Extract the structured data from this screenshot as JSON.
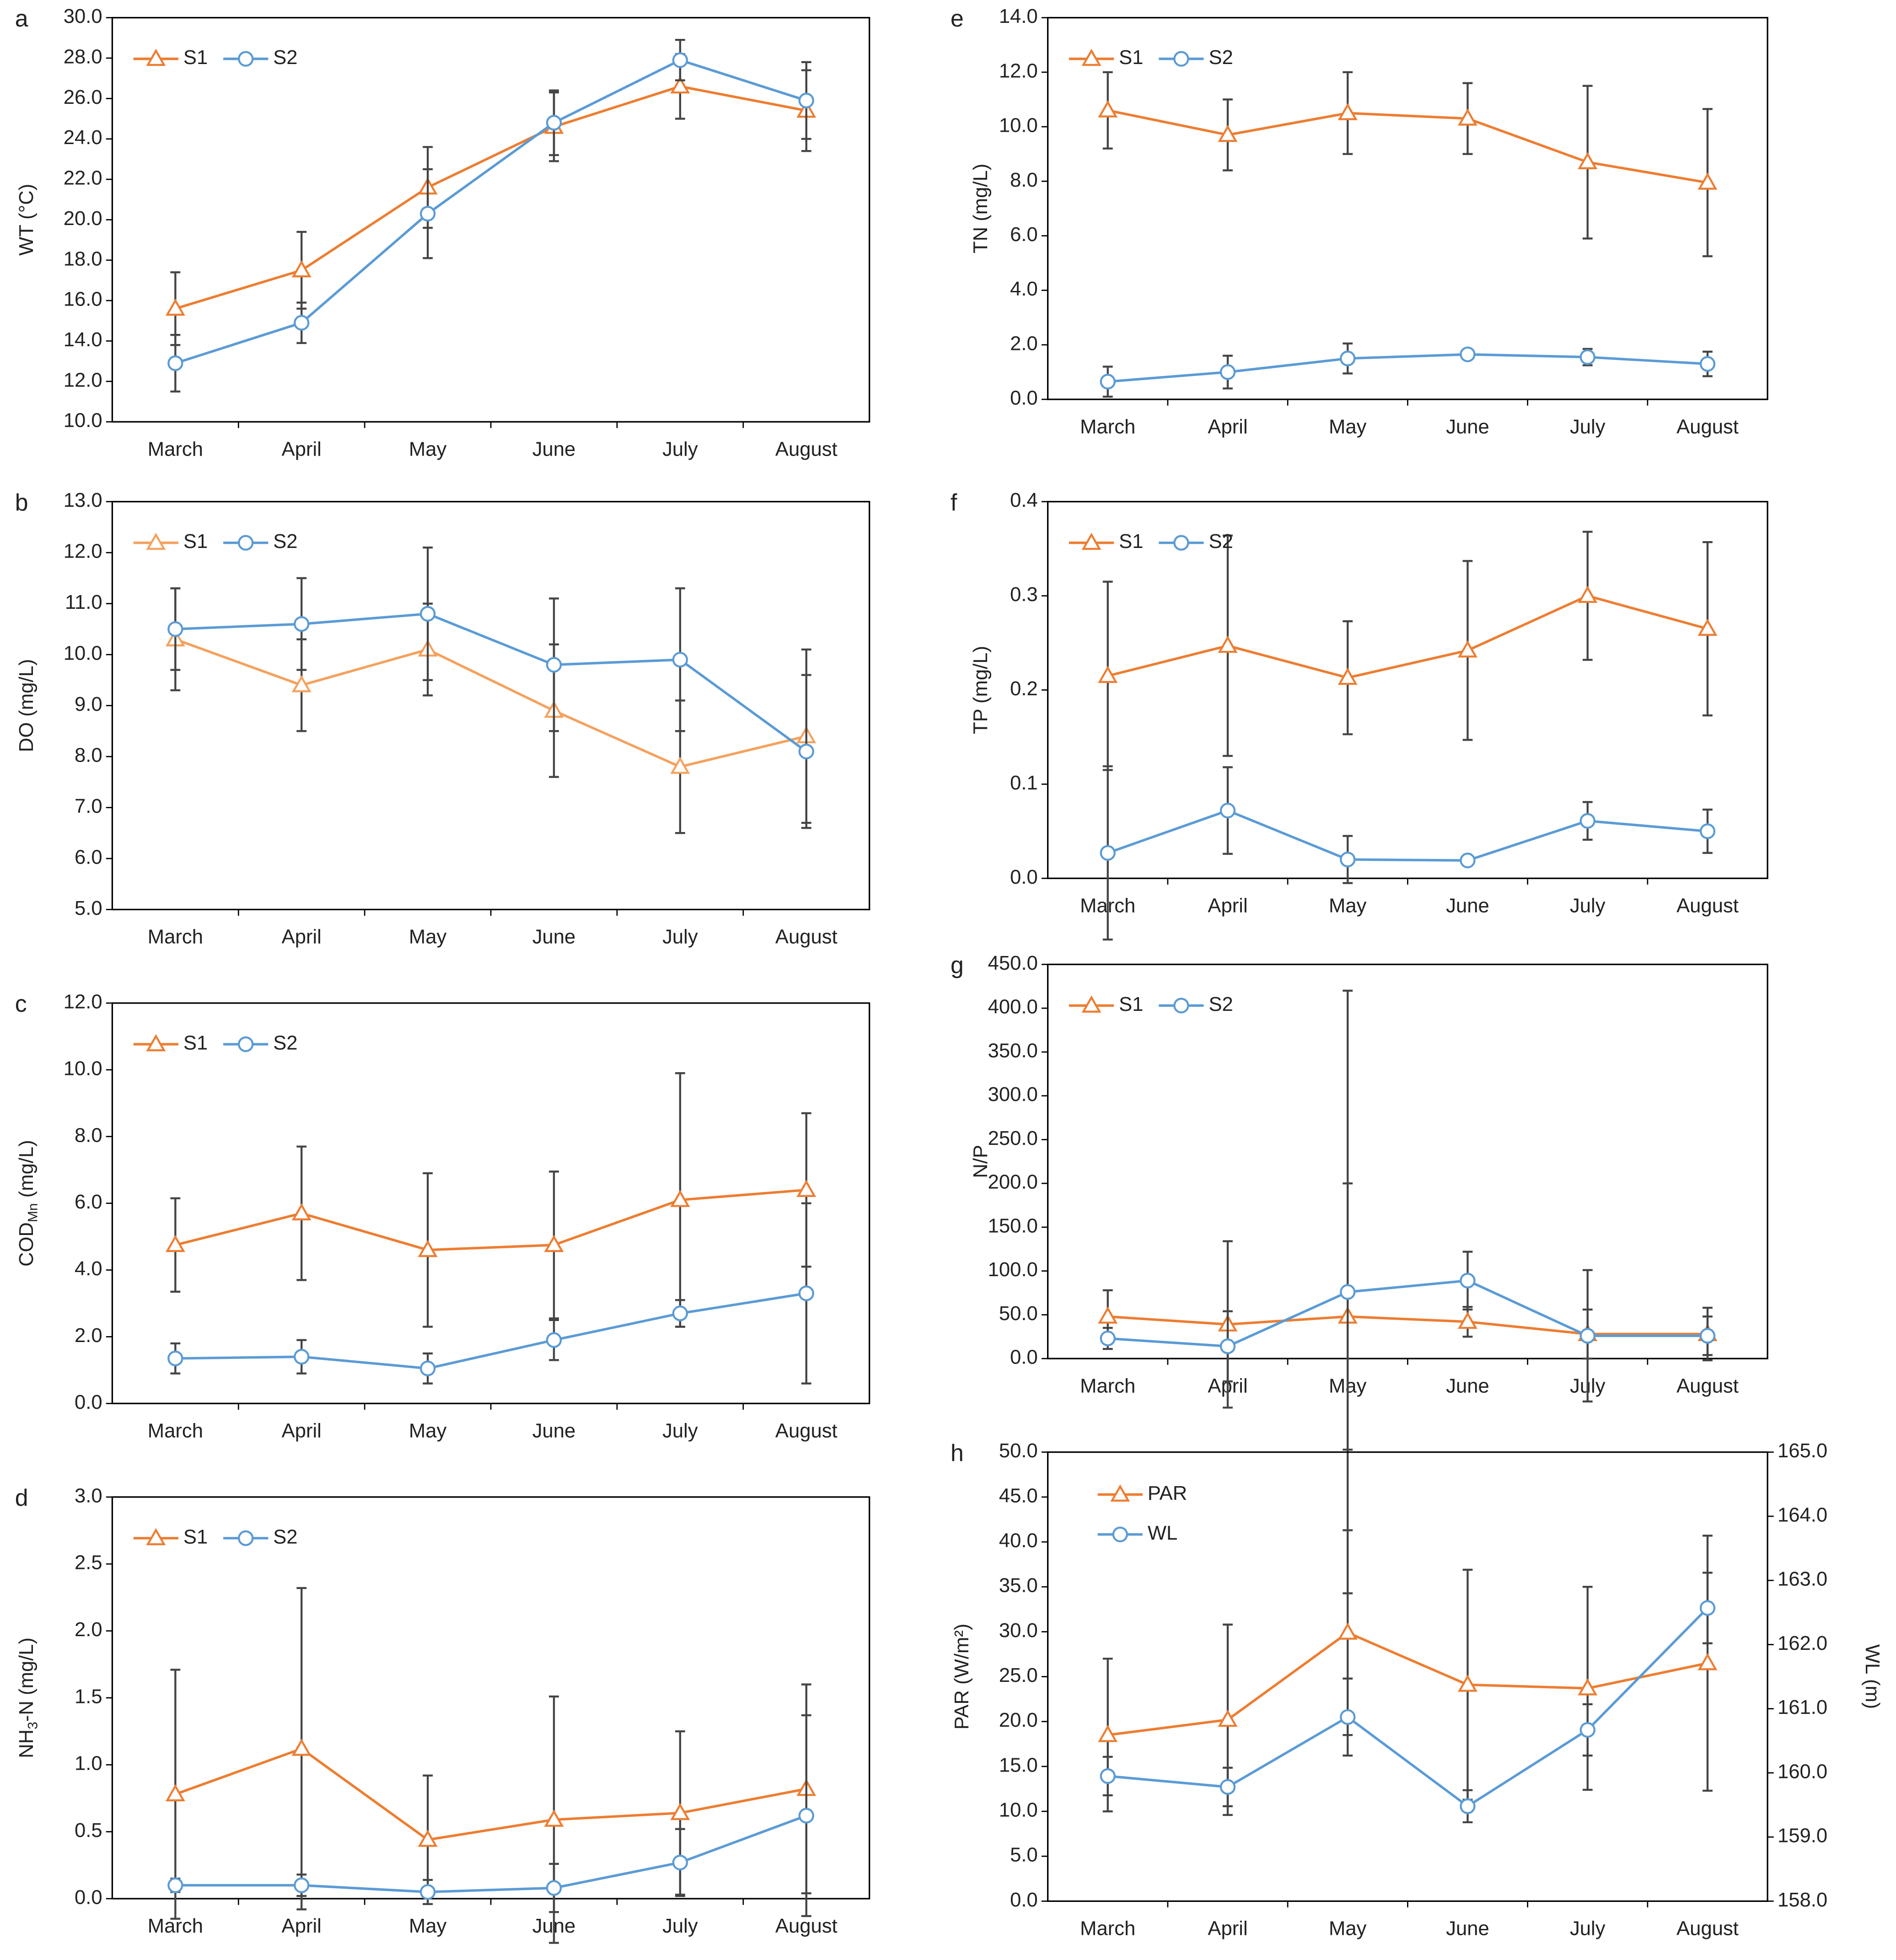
{
  "chart_data": [
    {
      "type": "line",
      "label": "a",
      "y_label": "WT (°C)",
      "categories": [
        "March",
        "April",
        "May",
        "June",
        "July",
        "August"
      ],
      "series": [
        {
          "name": "S1",
          "color": "#ed7d31",
          "marker": "triangle",
          "values": [
            15.6,
            17.5,
            21.6,
            24.6,
            26.6,
            25.4
          ],
          "errors": [
            1.8,
            1.9,
            2.0,
            1.7,
            1.6,
            2.0
          ]
        },
        {
          "name": "S2",
          "color": "#5b9bd5",
          "marker": "circle",
          "values": [
            12.9,
            14.9,
            20.3,
            24.8,
            27.9,
            25.9
          ],
          "errors": [
            1.4,
            1.0,
            2.2,
            1.6,
            1.0,
            1.9
          ]
        }
      ],
      "ylim": [
        10,
        30
      ],
      "yticks": [
        {
          "value": 10,
          "label": "10.0"
        },
        {
          "value": 12,
          "label": "12.0"
        },
        {
          "value": 14,
          "label": "14.0"
        },
        {
          "value": 16,
          "label": "16.0"
        },
        {
          "value": 18,
          "label": "18.0"
        },
        {
          "value": 20,
          "label": "20.0"
        },
        {
          "value": 22,
          "label": "22.0"
        },
        {
          "value": 24,
          "label": "24.0"
        },
        {
          "value": 26,
          "label": "26.0"
        },
        {
          "value": 28,
          "label": "28.0"
        },
        {
          "value": 30,
          "label": "30.0"
        }
      ],
      "legend": "upper left"
    },
    {
      "type": "line",
      "label": "b",
      "y_label": "DO (mg/L)",
      "categories": [
        "March",
        "April",
        "May",
        "June",
        "July",
        "August"
      ],
      "series": [
        {
          "name": "S1",
          "color": "#f4a15d",
          "marker": "triangle",
          "values": [
            10.3,
            9.4,
            10.1,
            8.9,
            7.8,
            8.4
          ],
          "errors": [
            1.0,
            0.9,
            0.9,
            1.3,
            1.3,
            1.7
          ]
        },
        {
          "name": "S2",
          "color": "#5b9bd5",
          "marker": "circle",
          "values": [
            10.5,
            10.6,
            10.8,
            9.8,
            9.9,
            8.1
          ],
          "errors": [
            0.8,
            0.9,
            1.3,
            1.3,
            1.4,
            1.5
          ]
        }
      ],
      "ylim": [
        5,
        13
      ],
      "yticks": [
        {
          "value": 5,
          "label": "5.0"
        },
        {
          "value": 6,
          "label": "6.0"
        },
        {
          "value": 7,
          "label": "7.0"
        },
        {
          "value": 8,
          "label": "8.0"
        },
        {
          "value": 9,
          "label": "9.0"
        },
        {
          "value": 10,
          "label": "10.0"
        },
        {
          "value": 11,
          "label": "11.0"
        },
        {
          "value": 12,
          "label": "12.0"
        },
        {
          "value": 13,
          "label": "13.0"
        }
      ],
      "legend": "upper left"
    },
    {
      "type": "line",
      "label": "c",
      "y_label": "COD",
      "y_label_sub": "Mn",
      "y_label_unit": " (mg/L)",
      "categories": [
        "March",
        "April",
        "May",
        "June",
        "July",
        "August"
      ],
      "series": [
        {
          "name": "S1",
          "color": "#ed7d31",
          "marker": "triangle",
          "values": [
            4.75,
            5.7,
            4.6,
            4.75,
            6.1,
            6.4
          ],
          "errors": [
            1.4,
            2.0,
            2.3,
            2.2,
            3.8,
            2.3
          ]
        },
        {
          "name": "S2",
          "color": "#5b9bd5",
          "marker": "circle",
          "values": [
            1.35,
            1.4,
            1.05,
            1.9,
            2.7,
            3.3
          ],
          "errors": [
            0.45,
            0.5,
            0.45,
            0.6,
            0.4,
            2.7
          ]
        }
      ],
      "ylim": [
        0,
        12
      ],
      "yticks": [
        {
          "value": 0,
          "label": "0.0"
        },
        {
          "value": 2,
          "label": "2.0"
        },
        {
          "value": 4,
          "label": "4.0"
        },
        {
          "value": 6,
          "label": "6.0"
        },
        {
          "value": 8,
          "label": "8.0"
        },
        {
          "value": 10,
          "label": "10.0"
        },
        {
          "value": 12,
          "label": "12.0"
        }
      ],
      "legend": "upper left"
    },
    {
      "type": "line",
      "label": "d",
      "y_label": "NH",
      "y_label_sub": "3",
      "y_label_unit": "-N (mg/L)",
      "categories": [
        "March",
        "April",
        "May",
        "June",
        "July",
        "August"
      ],
      "series": [
        {
          "name": "S1",
          "color": "#ed7d31",
          "marker": "triangle",
          "values": [
            0.78,
            1.12,
            0.44,
            0.59,
            0.64,
            0.82
          ],
          "errors": [
            0.93,
            1.2,
            0.48,
            0.92,
            0.61,
            0.78
          ]
        },
        {
          "name": "S2",
          "color": "#5b9bd5",
          "marker": "circle",
          "values": [
            0.1,
            0.1,
            0.05,
            0.08,
            0.27,
            0.62
          ],
          "errors": [
            0.05,
            0.08,
            0.09,
            0.18,
            0.25,
            0.75
          ]
        }
      ],
      "ylim": [
        0,
        3
      ],
      "yticks": [
        {
          "value": 0,
          "label": "0.0"
        },
        0.5,
        {
          "value": 1,
          "label": "1.0"
        },
        1.5,
        {
          "value": 2,
          "label": "2.0"
        },
        2.5,
        {
          "value": 3,
          "label": "3.0"
        }
      ],
      "legend": "upper left"
    },
    {
      "type": "line",
      "label": "e",
      "y_label": "TN (mg/L)",
      "categories": [
        "March",
        "April",
        "May",
        "June",
        "July",
        "August"
      ],
      "series": [
        {
          "name": "S1",
          "color": "#ed7d31",
          "marker": "triangle",
          "values": [
            10.6,
            9.7,
            10.5,
            10.3,
            8.7,
            7.95
          ],
          "errors": [
            1.4,
            1.3,
            1.5,
            1.3,
            2.8,
            2.7
          ]
        },
        {
          "name": "S2",
          "color": "#5b9bd5",
          "marker": "circle",
          "values": [
            0.65,
            1.0,
            1.5,
            1.65,
            1.55,
            1.3
          ],
          "errors": [
            0.55,
            0.6,
            0.55,
            0.15,
            0.3,
            0.45
          ]
        }
      ],
      "ylim": [
        0,
        14
      ],
      "yticks": [
        {
          "value": 0,
          "label": "0.0"
        },
        {
          "value": 2,
          "label": "2.0"
        },
        {
          "value": 4,
          "label": "4.0"
        },
        {
          "value": 6,
          "label": "6.0"
        },
        {
          "value": 8,
          "label": "8.0"
        },
        {
          "value": 10,
          "label": "10.0"
        },
        {
          "value": 12,
          "label": "12.0"
        },
        {
          "value": 14,
          "label": "14.0"
        }
      ],
      "legend": "upper left"
    },
    {
      "type": "line",
      "label": "f",
      "y_label": "TP (mg/L)",
      "categories": [
        "March",
        "April",
        "May",
        "June",
        "July",
        "August"
      ],
      "series": [
        {
          "name": "S1",
          "color": "#ed7d31",
          "marker": "triangle",
          "values": [
            0.215,
            0.247,
            0.213,
            0.242,
            0.3,
            0.265
          ],
          "errors": [
            0.1,
            0.117,
            0.06,
            0.095,
            0.068,
            0.092
          ]
        },
        {
          "name": "S2",
          "color": "#5b9bd5",
          "marker": "circle",
          "values": [
            0.027,
            0.072,
            0.02,
            0.019,
            0.061,
            0.05
          ],
          "errors": [
            0.092,
            0.046,
            0.025,
            0.005,
            0.02,
            0.023
          ]
        }
      ],
      "ylim": [
        0,
        0.4
      ],
      "yticks": [
        {
          "value": 0,
          "label": "0.0"
        },
        0.1,
        0.2,
        0.3,
        0.4
      ],
      "legend": "upper left"
    },
    {
      "type": "line",
      "label": "g",
      "y_label": "N/P",
      "categories": [
        "March",
        "April",
        "May",
        "June",
        "July",
        "August"
      ],
      "series": [
        {
          "name": "S1",
          "color": "#ed7d31",
          "marker": "triangle",
          "values": [
            48,
            39,
            48,
            42,
            28,
            28
          ],
          "errors": [
            30,
            95,
            152,
            17,
            28,
            30
          ]
        },
        {
          "name": "S2",
          "color": "#5b9bd5",
          "marker": "circle",
          "values": [
            23,
            14,
            76,
            89,
            26,
            26
          ],
          "errors": [
            12,
            40,
            344,
            33,
            75,
            22
          ]
        }
      ],
      "ylim": [
        0,
        450
      ],
      "yticks": [
        {
          "value": 0,
          "label": "0.0"
        },
        {
          "value": 50,
          "label": "50.0"
        },
        {
          "value": 100,
          "label": "100.0"
        },
        {
          "value": 150,
          "label": "150.0"
        },
        {
          "value": 200,
          "label": "200.0"
        },
        {
          "value": 250,
          "label": "250.0"
        },
        {
          "value": 300,
          "label": "300.0"
        },
        {
          "value": 350,
          "label": "350.0"
        },
        {
          "value": 400,
          "label": "400.0"
        },
        {
          "value": 450,
          "label": "450.0"
        }
      ],
      "legend": "upper left"
    },
    {
      "type": "line",
      "label": "h",
      "y_label": "PAR (W/m²)",
      "y2_label": "WL (m)",
      "categories": [
        "March",
        "April",
        "May",
        "June",
        "July",
        "August"
      ],
      "series": [
        {
          "name": "PAR",
          "color": "#ed7d31",
          "marker": "triangle",
          "values": [
            18.5,
            20.2,
            29.9,
            24.1,
            23.7,
            26.5
          ],
          "errors": [
            8.5,
            10.6,
            11.4,
            12.8,
            11.3,
            14.2
          ]
        },
        {
          "name": "WL",
          "color": "#5b9bd5",
          "marker": "circle",
          "axis": "y2",
          "values": [
            159.95,
            159.78,
            160.87,
            159.48,
            160.67,
            162.57
          ],
          "errors": [
            0.3,
            0.3,
            0.6,
            0.25,
            0.4,
            0.55
          ]
        }
      ],
      "ylim": [
        0,
        50
      ],
      "yticks": [
        {
          "value": 0,
          "label": "0.0"
        },
        {
          "value": 5,
          "label": "5.0"
        },
        {
          "value": 10,
          "label": "10.0"
        },
        {
          "value": 15,
          "label": "15.0"
        },
        {
          "value": 20,
          "label": "20.0"
        },
        {
          "value": 25,
          "label": "25.0"
        },
        {
          "value": 30,
          "label": "30.0"
        },
        {
          "value": 35,
          "label": "35.0"
        },
        {
          "value": 40,
          "label": "40.0"
        },
        {
          "value": 45,
          "label": "45.0"
        },
        {
          "value": 50,
          "label": "50.0"
        }
      ],
      "y2lim": [
        158,
        165
      ],
      "y2ticks": [
        {
          "value": 158,
          "label": "158.0"
        },
        {
          "value": 159,
          "label": "159.0"
        },
        {
          "value": 160,
          "label": "160.0"
        },
        {
          "value": 161,
          "label": "161.0"
        },
        {
          "value": 162,
          "label": "162.0"
        },
        {
          "value": 163,
          "label": "163.0"
        },
        {
          "value": 164,
          "label": "164.0"
        },
        {
          "value": 165,
          "label": "165.0"
        }
      ],
      "legend": "upper left",
      "legend_layout": "vertical"
    }
  ]
}
